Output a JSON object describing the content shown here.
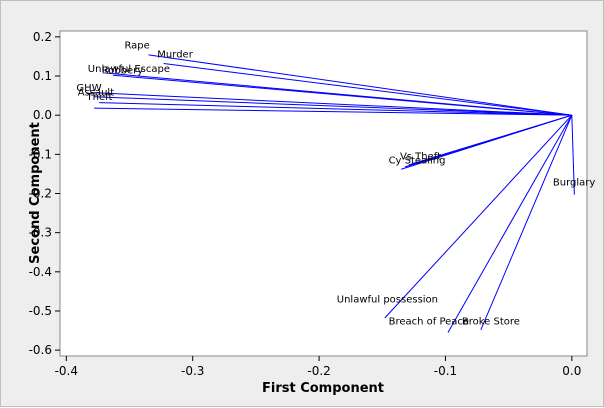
{
  "chart_data": {
    "type": "line",
    "xlabel": "First Component",
    "ylabel": "Second Component",
    "xlim": [
      -0.405,
      0.012
    ],
    "ylim": [
      -0.615,
      0.215
    ],
    "xticks": [
      -0.4,
      -0.3,
      -0.2,
      -0.1,
      0.0
    ],
    "xtick_labels": [
      "-0.4",
      "-0.3",
      "-0.2",
      "-0.1",
      "0.0"
    ],
    "yticks": [
      0.2,
      0.1,
      0.0,
      -0.1,
      -0.2,
      -0.3,
      -0.4,
      -0.5,
      -0.6
    ],
    "ytick_labels": [
      "0.2",
      "0.1",
      "0.0",
      "-0.1",
      "-0.2",
      "-0.3",
      "-0.4",
      "-0.5",
      "-0.6"
    ],
    "origin": [
      0.0,
      0.0
    ],
    "line_color": "#0000ff",
    "plot_background": "#ffffff",
    "figure_background": "#eeeeee",
    "vectors": [
      {
        "label": "Rape",
        "x": -0.335,
        "y": 0.154
      },
      {
        "label": "Murder",
        "x": -0.323,
        "y": 0.132
      },
      {
        "label": "Unlawful Escape",
        "x": -0.37,
        "y": 0.108
      },
      {
        "label": "Robbery",
        "x": -0.363,
        "y": 0.102
      },
      {
        "label": "GHW",
        "x": -0.381,
        "y": 0.058
      },
      {
        "label": "Assault",
        "x": -0.378,
        "y": 0.047
      },
      {
        "label": "Theft",
        "x": -0.374,
        "y": 0.032
      },
      {
        "label": "",
        "x": -0.378,
        "y": 0.018
      },
      {
        "label": "Vs Theft",
        "x": -0.129,
        "y": -0.127
      },
      {
        "label": "Cy Stealing",
        "x": -0.132,
        "y": -0.132
      },
      {
        "label": "",
        "x": -0.135,
        "y": -0.138
      },
      {
        "label": "Burglary",
        "x": 0.002,
        "y": -0.203
      },
      {
        "label": "Unlawful possession",
        "x": -0.148,
        "y": -0.518
      },
      {
        "label": "Breach of Peace",
        "x": -0.098,
        "y": -0.555
      },
      {
        "label": "Broke Store",
        "x": -0.072,
        "y": -0.548
      }
    ],
    "labels": [
      {
        "text": "Rape",
        "x": -0.354,
        "y": 0.17
      },
      {
        "text": "Murder",
        "x": -0.328,
        "y": 0.147
      },
      {
        "text": "Unlawful Escape",
        "x": -0.383,
        "y": 0.11
      },
      {
        "text": "Robbery",
        "x": -0.372,
        "y": 0.106
      },
      {
        "text": "GHW",
        "x": -0.392,
        "y": 0.062
      },
      {
        "text": "Assault",
        "x": -0.391,
        "y": 0.05
      },
      {
        "text": "Theft",
        "x": -0.384,
        "y": 0.039
      },
      {
        "text": "Vs Theft",
        "x": -0.136,
        "y": -0.113
      },
      {
        "text": "Cy Stealing",
        "x": -0.145,
        "y": -0.124
      },
      {
        "text": "Burglary",
        "x": -0.015,
        "y": -0.18
      },
      {
        "text": "Unlawful possession",
        "x": -0.186,
        "y": -0.478
      },
      {
        "text": "Breach of Peace",
        "x": -0.145,
        "y": -0.535
      },
      {
        "text": "Broke Store",
        "x": -0.087,
        "y": -0.535
      }
    ]
  }
}
